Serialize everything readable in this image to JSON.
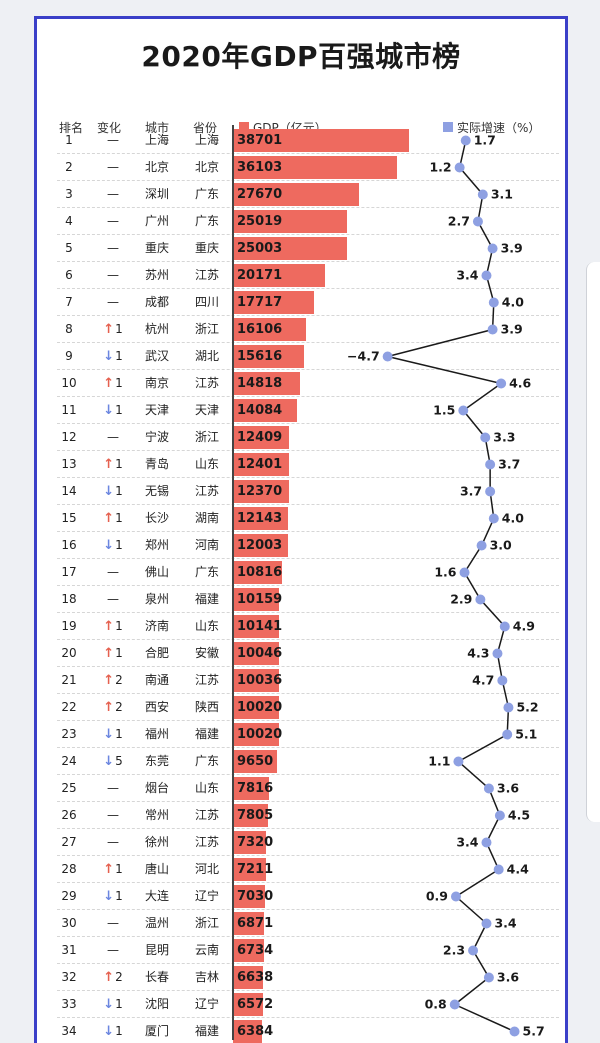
{
  "title": "2020年GDP百强城市榜",
  "headers": {
    "rank": "排名",
    "change": "变化",
    "city": "城市",
    "province": "省份",
    "gdp": "GDP（亿元）",
    "growth": "实际增速（%）"
  },
  "colors": {
    "frame": "#3a3fc8",
    "bar": "#ee6a5f",
    "growth_line": "#1a1a1a",
    "growth_point": "#8ea0e2",
    "arrow_up": "#e5604f",
    "arrow_down": "#6b86e0"
  },
  "chart_data": {
    "type": "table",
    "series": [
      {
        "name": "GDP（亿元）",
        "values": [
          38701,
          36103,
          27670,
          25019,
          25003,
          20171,
          17717,
          16106,
          15616,
          14818,
          14084,
          12409,
          12401,
          12370,
          12143,
          12003,
          10816,
          10159,
          10141,
          10046,
          10036,
          10020,
          10020,
          9650,
          7816,
          7805,
          7320,
          7211,
          7030,
          6871,
          6734,
          6638,
          6572,
          6384
        ]
      },
      {
        "name": "实际增速（%）",
        "values": [
          1.7,
          1.2,
          3.1,
          2.7,
          3.9,
          3.4,
          4.0,
          3.9,
          -4.7,
          4.6,
          1.5,
          3.3,
          3.7,
          3.7,
          4.0,
          3.0,
          1.6,
          2.9,
          4.9,
          4.3,
          4.7,
          5.2,
          5.1,
          1.1,
          3.6,
          4.5,
          3.4,
          4.4,
          0.9,
          3.4,
          2.3,
          3.6,
          0.8,
          5.7
        ]
      }
    ],
    "rows": [
      {
        "rank": "1",
        "change": "—",
        "city": "上海",
        "province": "上海",
        "gdp": 38701,
        "gdp_label": "38701",
        "growth": 1.7,
        "growth_label": "1.7"
      },
      {
        "rank": "2",
        "change": "—",
        "city": "北京",
        "province": "北京",
        "gdp": 36103,
        "gdp_label": "36103",
        "growth": 1.2,
        "growth_label": "1.2"
      },
      {
        "rank": "3",
        "change": "—",
        "city": "深圳",
        "province": "广东",
        "gdp": 27670,
        "gdp_label": "27670",
        "growth": 3.1,
        "growth_label": "3.1"
      },
      {
        "rank": "4",
        "change": "—",
        "city": "广州",
        "province": "广东",
        "gdp": 25019,
        "gdp_label": "25019",
        "growth": 2.7,
        "growth_label": "2.7"
      },
      {
        "rank": "5",
        "change": "—",
        "city": "重庆",
        "province": "重庆",
        "gdp": 25003,
        "gdp_label": "25003",
        "growth": 3.9,
        "growth_label": "3.9"
      },
      {
        "rank": "6",
        "change": "—",
        "city": "苏州",
        "province": "江苏",
        "gdp": 20171,
        "gdp_label": "20171",
        "growth": 3.4,
        "growth_label": "3.4"
      },
      {
        "rank": "7",
        "change": "—",
        "city": "成都",
        "province": "四川",
        "gdp": 17717,
        "gdp_label": "17717",
        "growth": 4.0,
        "growth_label": "4.0"
      },
      {
        "rank": "8",
        "dir": "up",
        "change": "1",
        "city": "杭州",
        "province": "浙江",
        "gdp": 16106,
        "gdp_label": "16106",
        "growth": 3.9,
        "growth_label": "3.9"
      },
      {
        "rank": "9",
        "dir": "down",
        "change": "1",
        "city": "武汉",
        "province": "湖北",
        "gdp": 15616,
        "gdp_label": "15616",
        "growth": -4.7,
        "growth_label": "−4.7"
      },
      {
        "rank": "10",
        "dir": "up",
        "change": "1",
        "city": "南京",
        "province": "江苏",
        "gdp": 14818,
        "gdp_label": "14818",
        "growth": 4.6,
        "growth_label": "4.6"
      },
      {
        "rank": "11",
        "dir": "down",
        "change": "1",
        "city": "天津",
        "province": "天津",
        "gdp": 14084,
        "gdp_label": "14084",
        "growth": 1.5,
        "growth_label": "1.5"
      },
      {
        "rank": "12",
        "change": "—",
        "city": "宁波",
        "province": "浙江",
        "gdp": 12409,
        "gdp_label": "12409",
        "growth": 3.3,
        "growth_label": "3.3"
      },
      {
        "rank": "13",
        "dir": "up",
        "change": "1",
        "city": "青岛",
        "province": "山东",
        "gdp": 12401,
        "gdp_label": "12401",
        "growth": 3.7,
        "growth_label": "3.7"
      },
      {
        "rank": "14",
        "dir": "down",
        "change": "1",
        "city": "无锡",
        "province": "江苏",
        "gdp": 12370,
        "gdp_label": "12370",
        "growth": 3.7,
        "growth_label": "3.7"
      },
      {
        "rank": "15",
        "dir": "up",
        "change": "1",
        "city": "长沙",
        "province": "湖南",
        "gdp": 12143,
        "gdp_label": "12143",
        "growth": 4.0,
        "growth_label": "4.0"
      },
      {
        "rank": "16",
        "dir": "down",
        "change": "1",
        "city": "郑州",
        "province": "河南",
        "gdp": 12003,
        "gdp_label": "12003",
        "growth": 3.0,
        "growth_label": "3.0"
      },
      {
        "rank": "17",
        "change": "—",
        "city": "佛山",
        "province": "广东",
        "gdp": 10816,
        "gdp_label": "10816",
        "growth": 1.6,
        "growth_label": "1.6"
      },
      {
        "rank": "18",
        "change": "—",
        "city": "泉州",
        "province": "福建",
        "gdp": 10159,
        "gdp_label": "10159",
        "growth": 2.9,
        "growth_label": "2.9"
      },
      {
        "rank": "19",
        "dir": "up",
        "change": "1",
        "city": "济南",
        "province": "山东",
        "gdp": 10141,
        "gdp_label": "10141",
        "growth": 4.9,
        "growth_label": "4.9"
      },
      {
        "rank": "20",
        "dir": "up",
        "change": "1",
        "city": "合肥",
        "province": "安徽",
        "gdp": 10046,
        "gdp_label": "10046",
        "growth": 4.3,
        "growth_label": "4.3"
      },
      {
        "rank": "21",
        "dir": "up",
        "change": "2",
        "city": "南通",
        "province": "江苏",
        "gdp": 10036,
        "gdp_label": "10036",
        "growth": 4.7,
        "growth_label": "4.7"
      },
      {
        "rank": "22",
        "dir": "up",
        "change": "2",
        "city": "西安",
        "province": "陕西",
        "gdp": 10020,
        "gdp_label": "10020",
        "growth": 5.2,
        "growth_label": "5.2"
      },
      {
        "rank": "23",
        "dir": "down",
        "change": "1",
        "city": "福州",
        "province": "福建",
        "gdp": 10020,
        "gdp_label": "10020",
        "growth": 5.1,
        "growth_label": "5.1"
      },
      {
        "rank": "24",
        "dir": "down",
        "change": "5",
        "city": "东莞",
        "province": "广东",
        "gdp": 9650,
        "gdp_label": "9650",
        "growth": 1.1,
        "growth_label": "1.1"
      },
      {
        "rank": "25",
        "change": "—",
        "city": "烟台",
        "province": "山东",
        "gdp": 7816,
        "gdp_label": "7816",
        "growth": 3.6,
        "growth_label": "3.6"
      },
      {
        "rank": "26",
        "change": "—",
        "city": "常州",
        "province": "江苏",
        "gdp": 7805,
        "gdp_label": "7805",
        "growth": 4.5,
        "growth_label": "4.5"
      },
      {
        "rank": "27",
        "change": "—",
        "city": "徐州",
        "province": "江苏",
        "gdp": 7320,
        "gdp_label": "7320",
        "growth": 3.4,
        "growth_label": "3.4"
      },
      {
        "rank": "28",
        "dir": "up",
        "change": "1",
        "city": "唐山",
        "province": "河北",
        "gdp": 7211,
        "gdp_label": "7211",
        "growth": 4.4,
        "growth_label": "4.4"
      },
      {
        "rank": "29",
        "dir": "down",
        "change": "1",
        "city": "大连",
        "province": "辽宁",
        "gdp": 7030,
        "gdp_label": "7030",
        "growth": 0.9,
        "growth_label": "0.9"
      },
      {
        "rank": "30",
        "change": "—",
        "city": "温州",
        "province": "浙江",
        "gdp": 6871,
        "gdp_label": "6871",
        "growth": 3.4,
        "growth_label": "3.4"
      },
      {
        "rank": "31",
        "change": "—",
        "city": "昆明",
        "province": "云南",
        "gdp": 6734,
        "gdp_label": "6734",
        "growth": 2.3,
        "growth_label": "2.3"
      },
      {
        "rank": "32",
        "dir": "up",
        "change": "2",
        "city": "长春",
        "province": "吉林",
        "gdp": 6638,
        "gdp_label": "6638",
        "growth": 3.6,
        "growth_label": "3.6"
      },
      {
        "rank": "33",
        "dir": "down",
        "change": "1",
        "city": "沈阳",
        "province": "辽宁",
        "gdp": 6572,
        "gdp_label": "6572",
        "growth": 0.8,
        "growth_label": "0.8"
      },
      {
        "rank": "34",
        "dir": "down",
        "change": "1",
        "city": "厦门",
        "province": "福建",
        "gdp": 6384,
        "gdp_label": "6384",
        "growth": 5.7,
        "growth_label": "5.7"
      }
    ]
  }
}
